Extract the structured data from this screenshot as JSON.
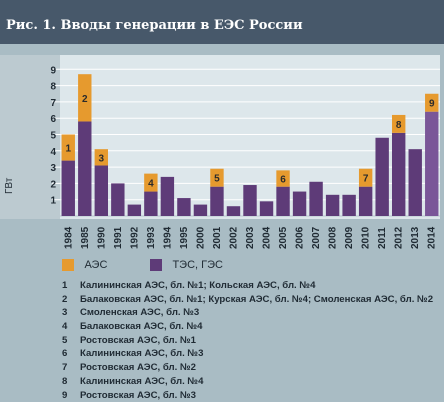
{
  "header": {
    "title": "Рис. 1. Вводы генерации в ЕЭС России"
  },
  "colors": {
    "aes": "#e69a2e",
    "tes_ges": "#5e3b78",
    "tes_ges_highlight": "#7a5698",
    "plot_bg": "#dde7eb",
    "panel_bg": "#a9bcc4",
    "header_bg": "#47586a"
  },
  "chart_data": {
    "type": "bar",
    "stacked": true,
    "title": "Рис. 1. Вводы генерации в ЕЭС России",
    "ylabel": "ГВт",
    "xlabel": "",
    "ylim": [
      0,
      9
    ],
    "yticks": [
      1,
      2,
      3,
      4,
      5,
      6,
      7,
      8,
      9
    ],
    "grid": true,
    "legend_position": "bottom-left",
    "categories": [
      "1984",
      "1985",
      "1990",
      "1991",
      "1992",
      "1993",
      "1994",
      "1995",
      "2000",
      "2001",
      "2002",
      "2003",
      "2004",
      "2005",
      "2006",
      "2007",
      "2008",
      "2009",
      "2010",
      "2011",
      "2012",
      "2013",
      "2014"
    ],
    "series": [
      {
        "name": "ТЭС, ГЭС",
        "values": [
          3.4,
          5.8,
          3.1,
          2.0,
          0.7,
          1.5,
          2.4,
          1.1,
          0.7,
          1.8,
          0.6,
          1.9,
          0.9,
          1.8,
          1.5,
          2.1,
          1.3,
          1.3,
          1.8,
          4.8,
          5.1,
          4.1,
          6.4
        ]
      },
      {
        "name": "АЭС",
        "values": [
          1.6,
          2.9,
          1.0,
          0,
          0,
          1.1,
          0,
          0,
          0,
          1.1,
          0,
          0,
          0,
          1.0,
          0,
          0,
          0,
          0,
          1.1,
          0,
          1.1,
          0,
          1.1
        ]
      }
    ],
    "annotations": [
      {
        "category": "1984",
        "label": "1"
      },
      {
        "category": "1985",
        "label": "2"
      },
      {
        "category": "1990",
        "label": "3"
      },
      {
        "category": "1993",
        "label": "4"
      },
      {
        "category": "2001",
        "label": "5"
      },
      {
        "category": "2005",
        "label": "6"
      },
      {
        "category": "2010",
        "label": "7"
      },
      {
        "category": "2012",
        "label": "8"
      },
      {
        "category": "2014",
        "label": "9"
      }
    ]
  },
  "legend": [
    {
      "label": "АЭС",
      "color": "#e69a2e"
    },
    {
      "label": "ТЭС, ГЭС",
      "color": "#5e3b78"
    }
  ],
  "notes": [
    {
      "num": "1",
      "text": "Калининская АЭС, бл. №1; Кольская АЭС, бл. №4"
    },
    {
      "num": "2",
      "text": "Балаковская АЭС, бл. №1; Курская АЭС, бл. №4; Смоленская АЭС, бл. №2"
    },
    {
      "num": "3",
      "text": "Смоленская АЭС, бл. №3"
    },
    {
      "num": "4",
      "text": "Балаковская АЭС, бл. №4"
    },
    {
      "num": "5",
      "text": "Ростовская АЭС, бл. №1"
    },
    {
      "num": "6",
      "text": "Калининская АЭС, бл. №3"
    },
    {
      "num": "7",
      "text": "Ростовская АЭС, бл. №2"
    },
    {
      "num": "8",
      "text": "Калининская АЭС, бл. №4"
    },
    {
      "num": "9",
      "text": "Ростовская АЭС, бл. №3"
    }
  ]
}
